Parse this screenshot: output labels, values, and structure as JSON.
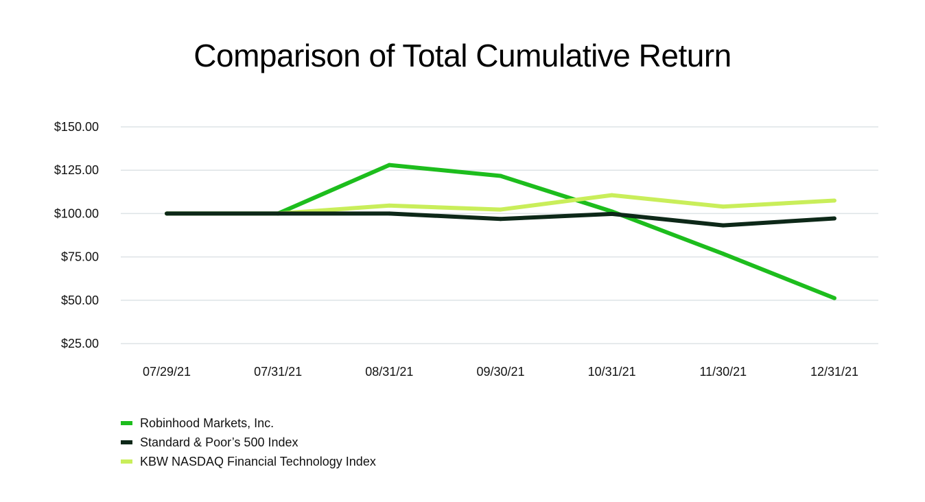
{
  "chart_data": {
    "type": "line",
    "title": "Comparison of Total Cumulative Return",
    "xlabel": "",
    "ylabel": "",
    "categories": [
      "07/29/21",
      "07/31/21",
      "08/31/21",
      "09/30/21",
      "10/31/21",
      "11/30/21",
      "12/31/21"
    ],
    "y_ticks": [
      "$25.00",
      "$50.00",
      "$75.00",
      "$100.00",
      "$125.00",
      "$150.00"
    ],
    "y_tick_values": [
      25,
      50,
      75,
      100,
      125,
      150
    ],
    "ylim": [
      25,
      150
    ],
    "grid": true,
    "legend_position": "bottom-left",
    "series": [
      {
        "name": "Robinhood Markets, Inc.",
        "color": "#1dbd1d",
        "values": [
          100.0,
          100.0,
          128.0,
          121.7,
          101.2,
          76.8,
          51.2
        ]
      },
      {
        "name": "KBW NASDAQ Financial Technology Index",
        "color": "#c9ee5a",
        "values": [
          100.0,
          100.0,
          104.6,
          102.3,
          110.6,
          104.0,
          107.5
        ]
      },
      {
        "name": "Standard & Poor’s 500 Index",
        "color": "#0d2818",
        "values": [
          100.0,
          100.0,
          100.0,
          96.9,
          99.8,
          93.2,
          97.2
        ]
      }
    ],
    "legend_order": [
      0,
      2,
      1
    ]
  }
}
